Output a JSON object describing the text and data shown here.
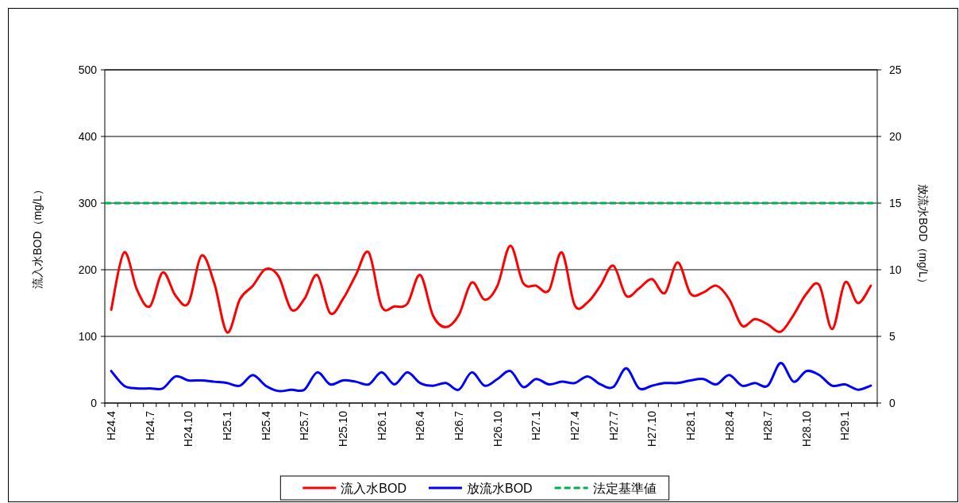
{
  "chart_data": {
    "type": "line",
    "ylabel": "流入水BOD（mg/L）",
    "y2label": "放流水BOD（mg/L）",
    "categories": [
      "H24.4",
      null,
      null,
      "H24.7",
      null,
      null,
      "H24.10",
      null,
      null,
      "H25.1",
      null,
      null,
      "H25.4",
      null,
      null,
      "H25.7",
      null,
      null,
      "H25.10",
      null,
      null,
      "H26.1",
      null,
      null,
      "H26.4",
      null,
      null,
      "H26.7",
      null,
      null,
      "H26.10",
      null,
      null,
      "H27.1",
      null,
      null,
      "H27.4",
      null,
      null,
      "H27.7",
      null,
      null,
      "H27.10",
      null,
      null,
      "H28.1",
      null,
      null,
      "H28.4",
      null,
      null,
      "H28.7",
      null,
      null,
      "H28.10",
      null,
      null,
      "H29.1",
      null,
      null
    ],
    "series": [
      {
        "name": "流入水BOD",
        "color": "#ff0000",
        "values": [
          140,
          226,
          170,
          145,
          196,
          161,
          150,
          221,
          180,
          106,
          156,
          176,
          201,
          190,
          140,
          156,
          192,
          135,
          156,
          192,
          226,
          145,
          145,
          149,
          192,
          131,
          114,
          132,
          181,
          155,
          176,
          236,
          180,
          176,
          169,
          226,
          147,
          151,
          176,
          206,
          161,
          172,
          186,
          165,
          211,
          164,
          166,
          176,
          156,
          116,
          126,
          118,
          107,
          132,
          164,
          177,
          111,
          181,
          150,
          176
        ]
      },
      {
        "name": "放流水BOD",
        "color": "#0000ff",
        "axis": "y2",
        "values": [
          2.4,
          1.3,
          1.1,
          1.1,
          1.1,
          2.0,
          1.7,
          1.7,
          1.6,
          1.5,
          1.3,
          2.1,
          1.3,
          0.9,
          1.0,
          1.0,
          2.3,
          1.4,
          1.7,
          1.6,
          1.4,
          2.3,
          1.4,
          2.3,
          1.5,
          1.3,
          1.5,
          1.0,
          2.3,
          1.3,
          1.8,
          2.4,
          1.2,
          1.8,
          1.4,
          1.6,
          1.5,
          2.0,
          1.4,
          1.2,
          2.6,
          1.1,
          1.3,
          1.5,
          1.5,
          1.7,
          1.8,
          1.4,
          2.1,
          1.3,
          1.5,
          1.3,
          3.0,
          1.6,
          2.4,
          2.1,
          1.3,
          1.4,
          1.0,
          1.3
        ]
      }
    ],
    "ref_lines": [
      {
        "axis": "y",
        "value": 300,
        "label": "法定基準値",
        "color": "#00b050",
        "line_style": "dashed"
      }
    ],
    "ylim": [
      0,
      500
    ],
    "yticks": [
      0,
      100,
      200,
      300,
      400,
      500
    ],
    "y2lim": [
      0,
      25
    ],
    "y2ticks": [
      0,
      5,
      10,
      15,
      20,
      25
    ],
    "grid": "y",
    "legend": "bottom"
  }
}
